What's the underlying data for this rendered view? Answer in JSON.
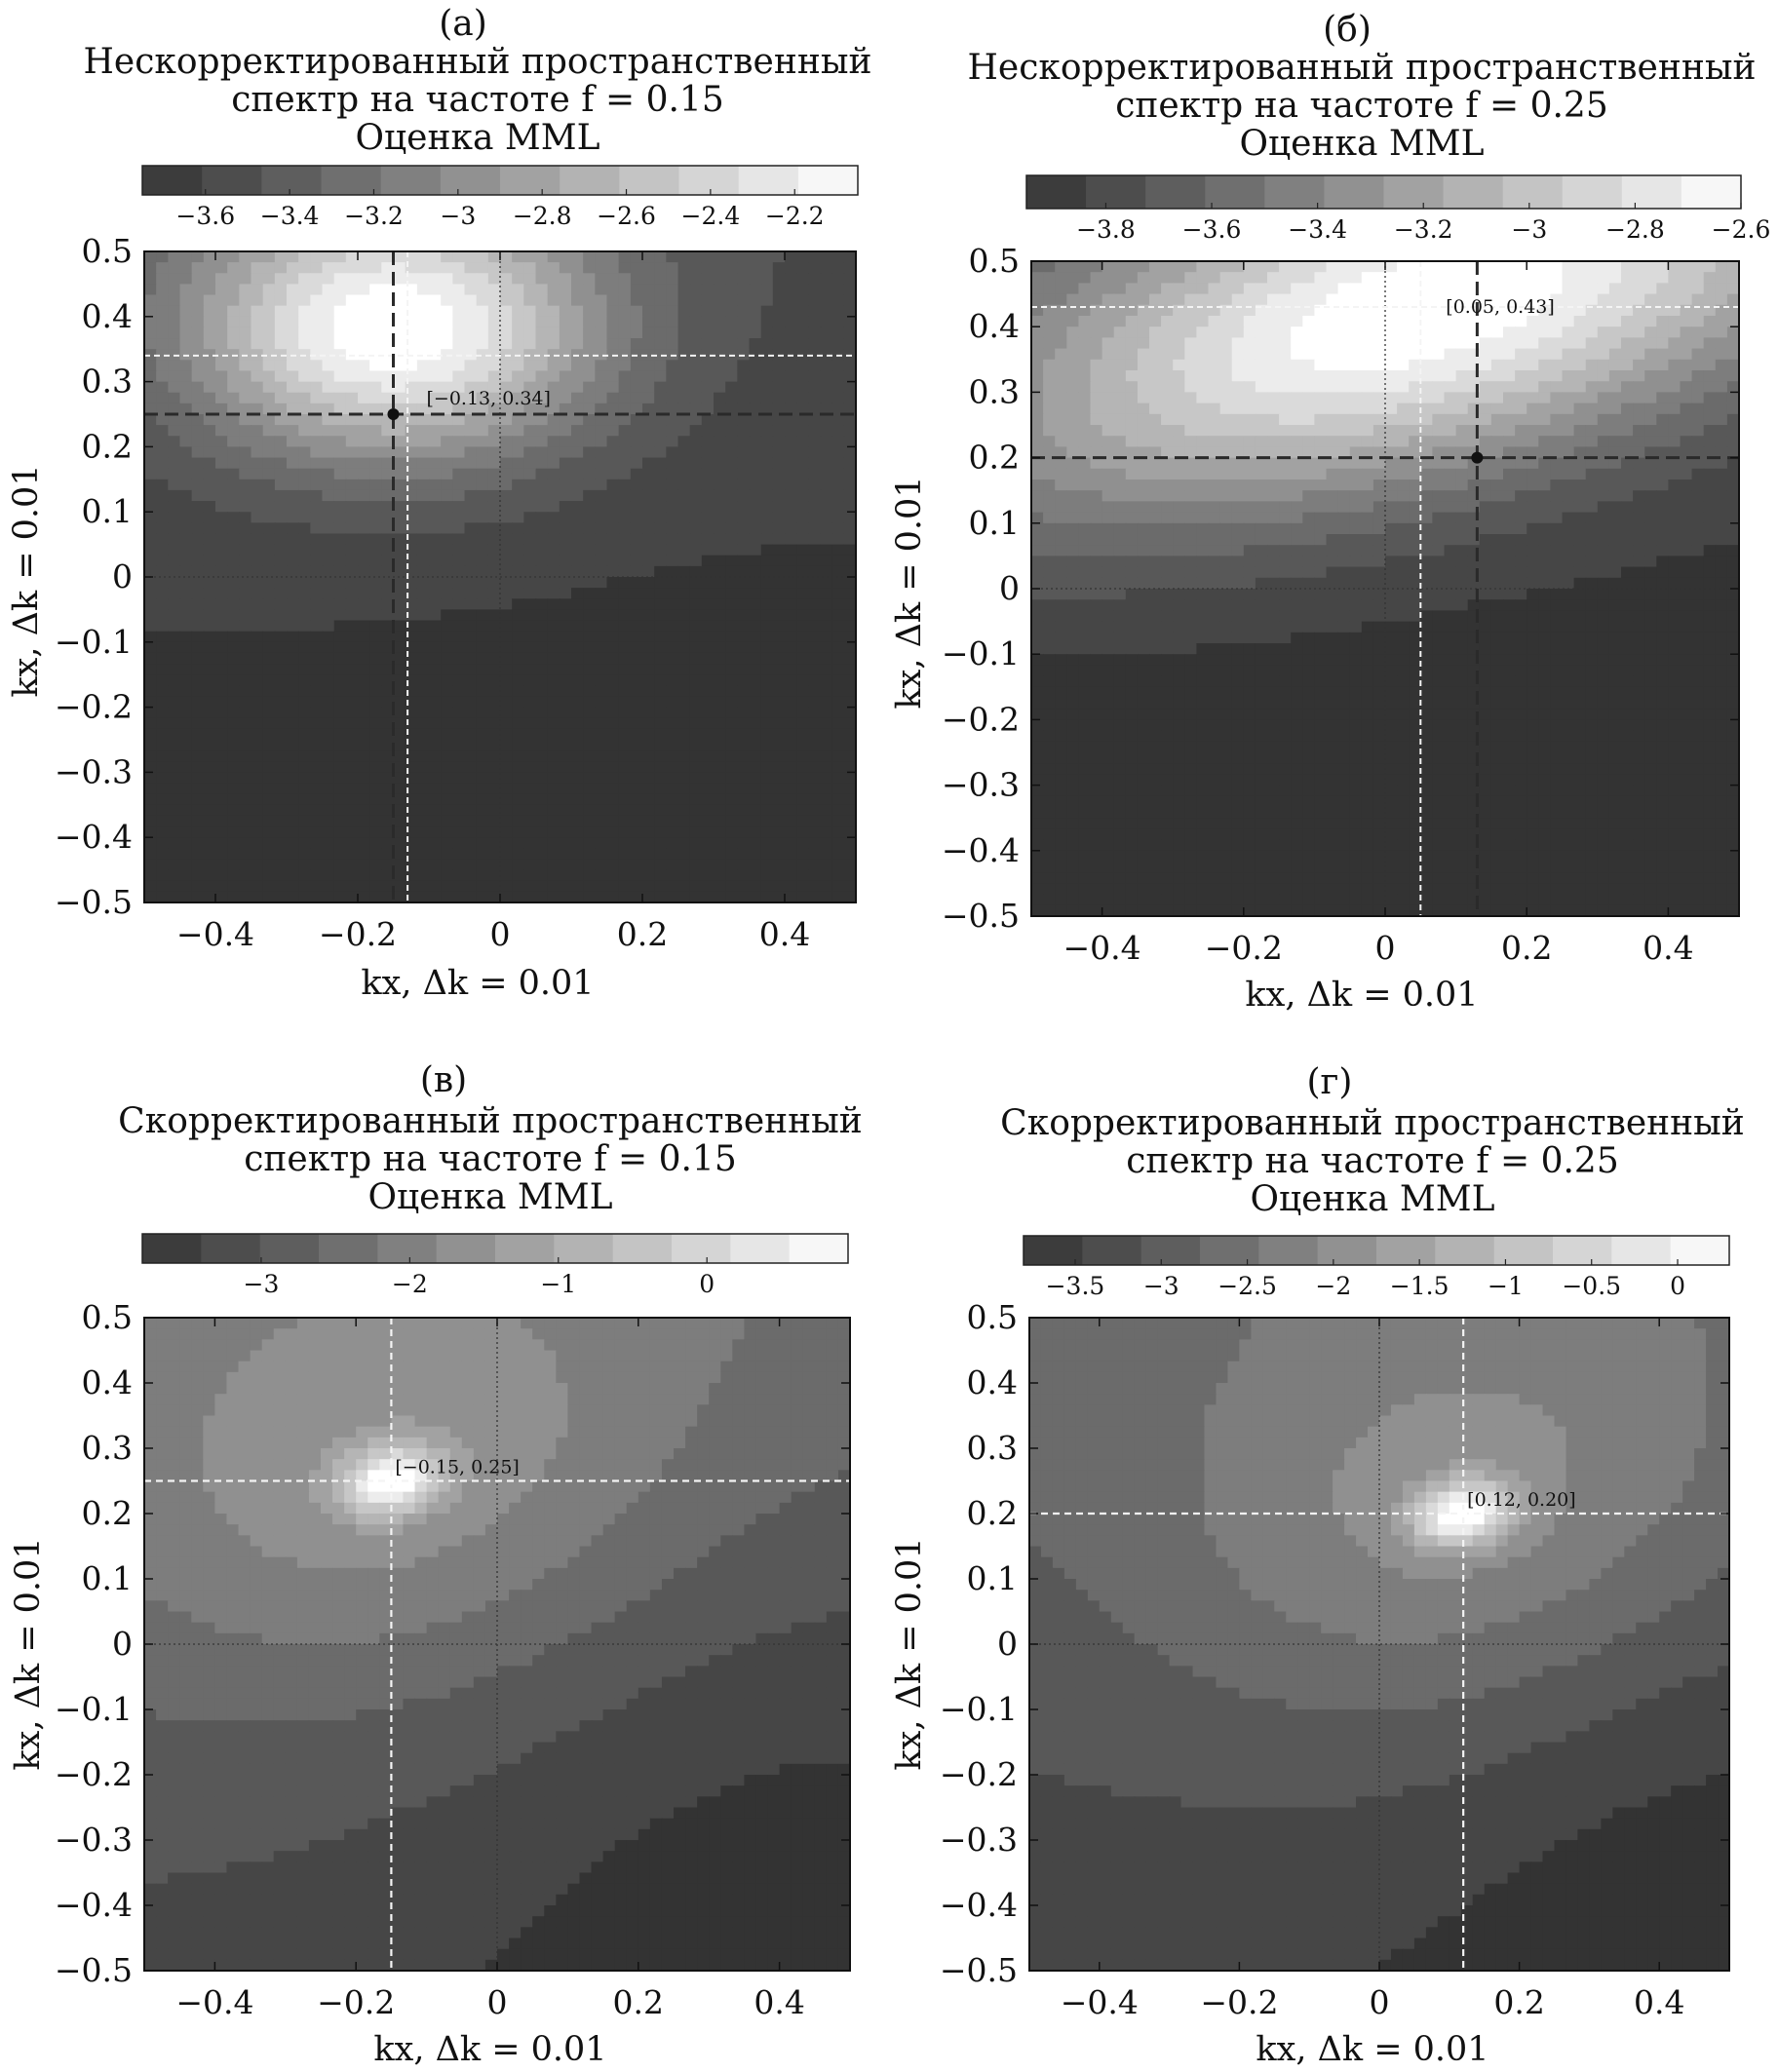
{
  "colors": {
    "min": "#333333",
    "max": "#ffffff",
    "dashed_dark": "#2a2a2a",
    "dashed_light": "#f4f4f4",
    "text": "#111111"
  },
  "chart_data": [
    {
      "type": "heatmap",
      "panel_label": "(а)",
      "title_lines": [
        "Нескорректированный пространственный",
        "спектр на частоте f = 0.15",
        "Оценка MML"
      ],
      "xlabel": "kx, Δk = 0.01",
      "ylabel": "kx, Δk = 0.01",
      "xlim": [
        -0.5,
        0.5
      ],
      "ylim": [
        -0.5,
        0.5
      ],
      "xticks": [
        -0.4,
        -0.2,
        0,
        0.2,
        0.4
      ],
      "yticks": [
        -0.5,
        -0.4,
        -0.3,
        -0.2,
        -0.1,
        0,
        0.1,
        0.2,
        0.3,
        0.4,
        0.5
      ],
      "colorbar": {
        "range": [
          -3.75,
          -2.05
        ],
        "ticks": [
          -3.6,
          -3.4,
          -3.2,
          -3.0,
          -2.8,
          -2.6,
          -2.4,
          -2.2
        ]
      },
      "peak": [
        -0.15,
        0.25
      ],
      "true_source": [
        -0.13,
        0.34
      ],
      "annotation": "[−0.13, 0.34]",
      "marker_style": "dark",
      "grid_lines": "dotted zero axes",
      "field": {
        "cx": -0.15,
        "cy": 0.38,
        "sx": 0.2,
        "sy": 0.14,
        "rho": 0,
        "bgx": 0.8,
        "bgy": 0.9,
        "amp": 1.25,
        "floor": 0.05
      }
    },
    {
      "type": "heatmap",
      "panel_label": "(б)",
      "title_lines": [
        "Нескорректированный пространственный",
        "спектр на частоте f = 0.25",
        "Оценка MML"
      ],
      "xlabel": "kx, Δk = 0.01",
      "ylabel": "kx, Δk = 0.01",
      "xlim": [
        -0.5,
        0.5
      ],
      "ylim": [
        -0.5,
        0.5
      ],
      "xticks": [
        -0.4,
        -0.2,
        0,
        0.2,
        0.4
      ],
      "yticks": [
        -0.5,
        -0.4,
        -0.3,
        -0.2,
        -0.1,
        0,
        0.1,
        0.2,
        0.3,
        0.4,
        0.5
      ],
      "colorbar": {
        "range": [
          -3.95,
          -2.6
        ],
        "ticks": [
          -3.8,
          -3.6,
          -3.4,
          -3.2,
          -3.0,
          -2.8,
          -2.6
        ]
      },
      "peak": [
        0.13,
        0.2
      ],
      "true_source": [
        0.05,
        0.43
      ],
      "annotation": "[0.05, 0.43]",
      "marker_style": "dark",
      "grid_lines": "dotted zero axes",
      "field": {
        "cx": 0.05,
        "cy": 0.42,
        "sx": 0.45,
        "sy": 0.17,
        "rho": 0.3,
        "bgx": 0.5,
        "bgy": 0.9,
        "amp": 1.35,
        "floor": 0.0
      }
    },
    {
      "type": "heatmap",
      "panel_label": "(в)",
      "title_lines": [
        "Скорректированный пространственный",
        "спектр на частоте f = 0.15",
        "Оценка MML"
      ],
      "xlabel": "kx, Δk = 0.01",
      "ylabel": "kx, Δk = 0.01",
      "xlim": [
        -0.5,
        0.5
      ],
      "ylim": [
        -0.5,
        0.5
      ],
      "xticks": [
        -0.4,
        -0.2,
        0,
        0.2,
        0.4
      ],
      "yticks": [
        -0.5,
        -0.4,
        -0.3,
        -0.2,
        -0.1,
        0,
        0.1,
        0.2,
        0.3,
        0.4,
        0.5
      ],
      "colorbar": {
        "range": [
          -3.8,
          0.95
        ],
        "ticks": [
          -3,
          -2,
          -1,
          0
        ]
      },
      "peak": [
        -0.15,
        0.25
      ],
      "annotation": "[−0.15, 0.25]",
      "marker_style": "light",
      "grid_lines": "dotted zero axes",
      "field": {
        "cx": -0.15,
        "cy": 0.25,
        "sx": 0.05,
        "sy": 0.035,
        "rho": 0.25,
        "bgx": 0.7,
        "bgy": 0.9,
        "amp": 0.55,
        "floor": 0.15,
        "sx2": 0.3,
        "sy2": 0.22,
        "amp2": 0.22
      }
    },
    {
      "type": "heatmap",
      "panel_label": "(г)",
      "title_lines": [
        "Скорректированный пространственный",
        "спектр на частоте f = 0.25",
        "Оценка MML"
      ],
      "xlabel": "kx, Δk = 0.01",
      "ylabel": "kx, Δk = 0.01",
      "xlim": [
        -0.5,
        0.5
      ],
      "ylim": [
        -0.5,
        0.5
      ],
      "xticks": [
        -0.4,
        -0.2,
        0,
        0.2,
        0.4
      ],
      "yticks": [
        -0.5,
        -0.4,
        -0.3,
        -0.2,
        -0.1,
        0,
        0.1,
        0.2,
        0.3,
        0.4,
        0.5
      ],
      "colorbar": {
        "range": [
          -3.8,
          0.3
        ],
        "ticks": [
          -3.5,
          -3.0,
          -2.5,
          -2.0,
          -1.5,
          -1.0,
          -0.5,
          0
        ]
      },
      "peak": [
        0.12,
        0.2
      ],
      "annotation": "[0.12, 0.20]",
      "marker_style": "light",
      "grid_lines": "dotted zero axes",
      "field": {
        "cx": 0.12,
        "cy": 0.2,
        "sx": 0.05,
        "sy": 0.035,
        "rho": 0.25,
        "bgx": 0.5,
        "bgy": 0.9,
        "amp": 0.55,
        "floor": 0.1,
        "sx2": 0.3,
        "sy2": 0.22,
        "amp2": 0.22
      }
    }
  ]
}
